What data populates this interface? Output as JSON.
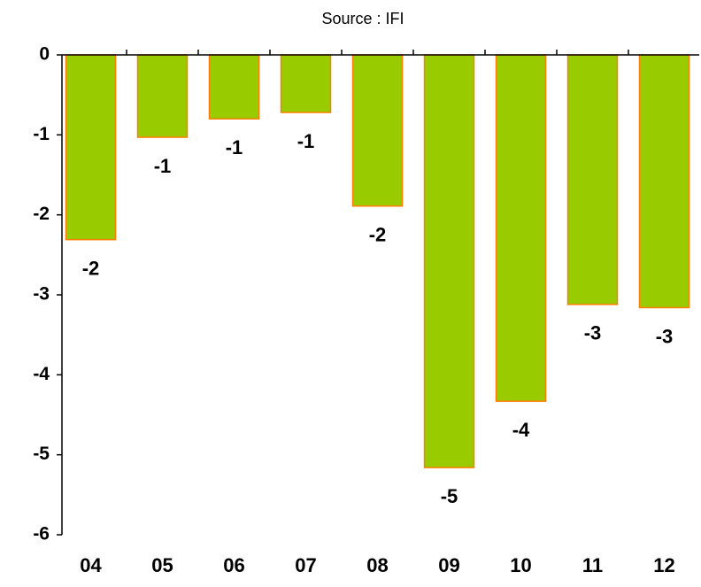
{
  "chart_data": {
    "type": "bar",
    "title": "Source : IFI",
    "categories": [
      "04",
      "05",
      "06",
      "07",
      "08",
      "09",
      "10",
      "11",
      "12"
    ],
    "values": [
      -2.31,
      -1.03,
      -0.8,
      -0.72,
      -1.89,
      -5.16,
      -4.33,
      -3.12,
      -3.16
    ],
    "value_labels": [
      "-2",
      "-1",
      "-1",
      "-1",
      "-2",
      "-5",
      "-4",
      "-3",
      "-3"
    ],
    "color": "#99cc00",
    "edge_color": "#ff7f00",
    "ylim": [
      -6,
      0
    ],
    "yticks": [
      -6,
      -5,
      -4,
      -3,
      -2,
      -1,
      0
    ],
    "grid": false
  }
}
